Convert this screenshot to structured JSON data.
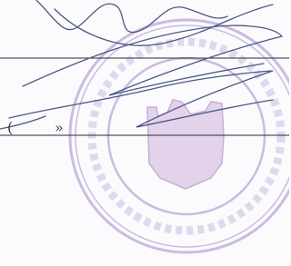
{
  "quote_mark": "»"
}
